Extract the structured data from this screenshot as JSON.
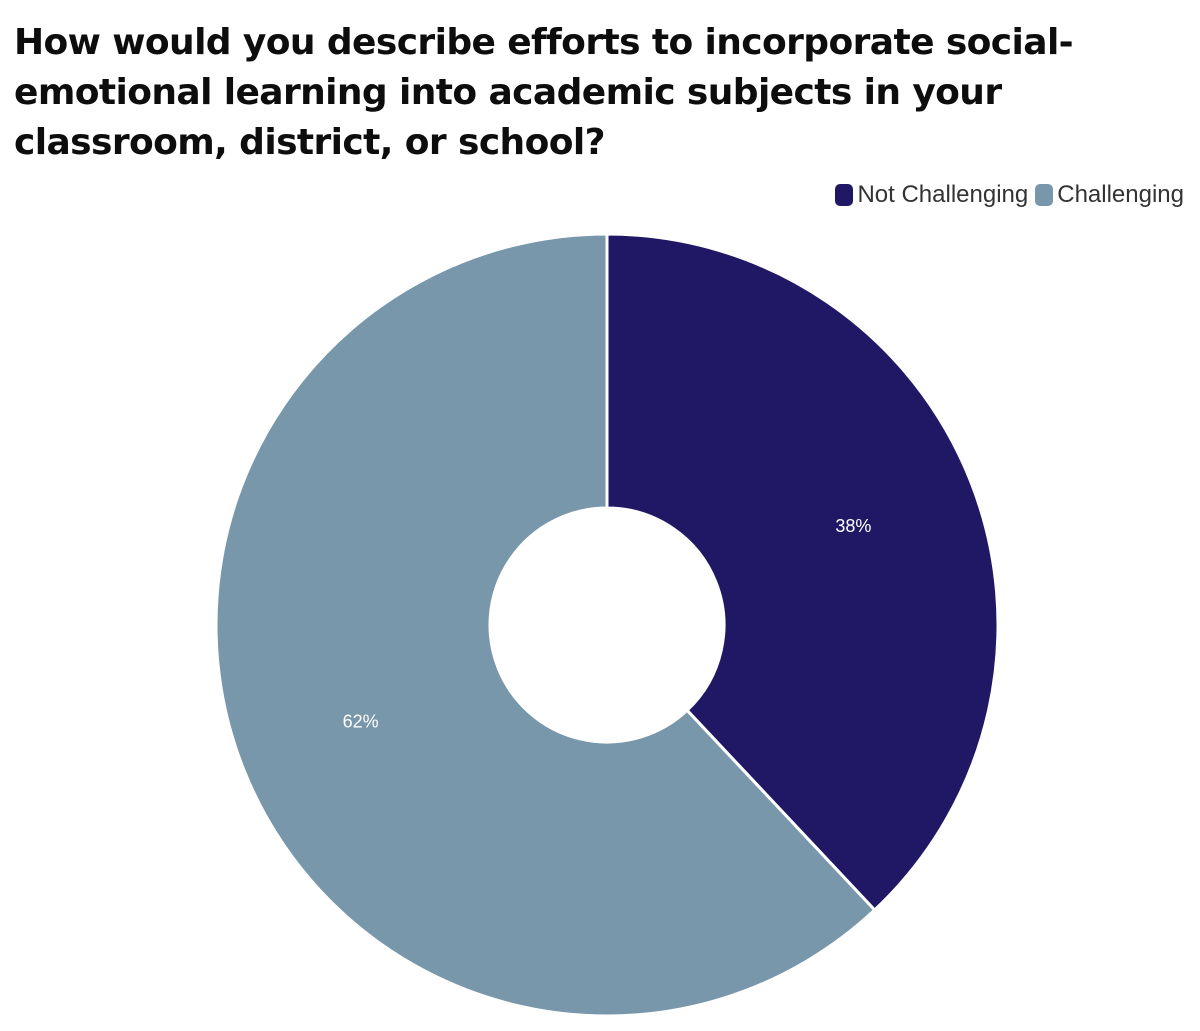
{
  "chart_data": {
    "type": "pie",
    "title": "How would you describe efforts to incorporate social-emotional learning into academic subjects in your classroom, district, or school?",
    "legend_position": "top-right",
    "donut": true,
    "categories": [
      "Not Challenging",
      "Challenging"
    ],
    "values": [
      38,
      62
    ],
    "labels": [
      "38%",
      "62%"
    ],
    "colors": [
      "#211865",
      "#7897AB"
    ]
  }
}
